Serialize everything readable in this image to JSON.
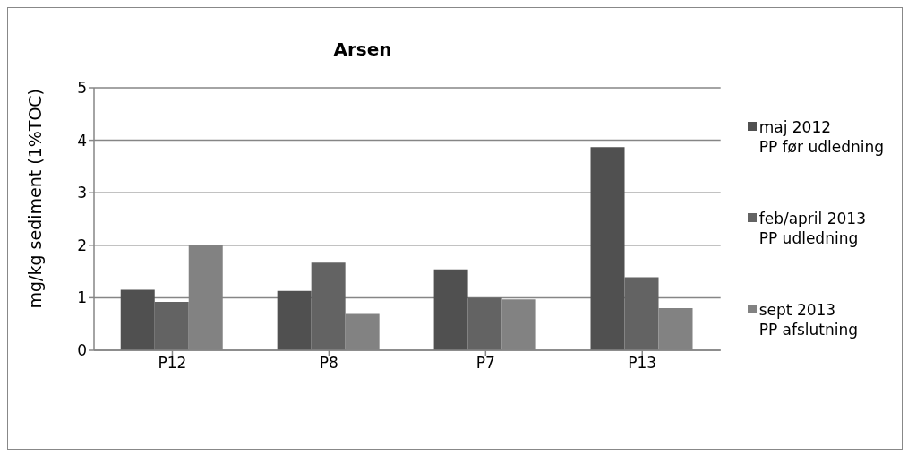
{
  "chart_data": {
    "type": "bar",
    "title": "Arsen",
    "ylabel": "mg/kg sediment (1%TOC)",
    "categories": [
      "P12",
      "P8",
      "P7",
      "P13"
    ],
    "series": [
      {
        "name": "maj 2012\nPP før udledning",
        "color": "#505050",
        "values": [
          1.15,
          1.13,
          1.54,
          3.87
        ]
      },
      {
        "name": "feb/april 2013\nPP udledning",
        "color": "#636363",
        "values": [
          0.92,
          1.67,
          1.0,
          1.39
        ]
      },
      {
        "name": "sept 2013\nPP afslutning",
        "color": "#828282",
        "values": [
          2.0,
          0.69,
          0.97,
          0.8
        ]
      }
    ],
    "ylim": [
      0,
      5
    ],
    "yticks": [
      0,
      1,
      2,
      3,
      4,
      5
    ],
    "grid": "y",
    "legend": "right"
  }
}
